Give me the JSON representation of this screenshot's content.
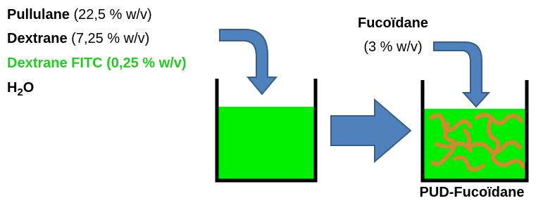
{
  "ingredients": [
    {
      "name": "Pullulane",
      "concentration": "(22,5 % w/v)"
    },
    {
      "name": "Dextrane",
      "concentration": "(7,25 % w/v)"
    },
    {
      "name": "Dextrane FITC (0,25 % w/v)"
    }
  ],
  "water": {
    "h": "H",
    "sub": "2",
    "o": "O"
  },
  "additive": {
    "name": "Fucoïdane",
    "concentration": "(3 % w/v)"
  },
  "product": {
    "label": "PUD-Fucoïdane"
  }
}
